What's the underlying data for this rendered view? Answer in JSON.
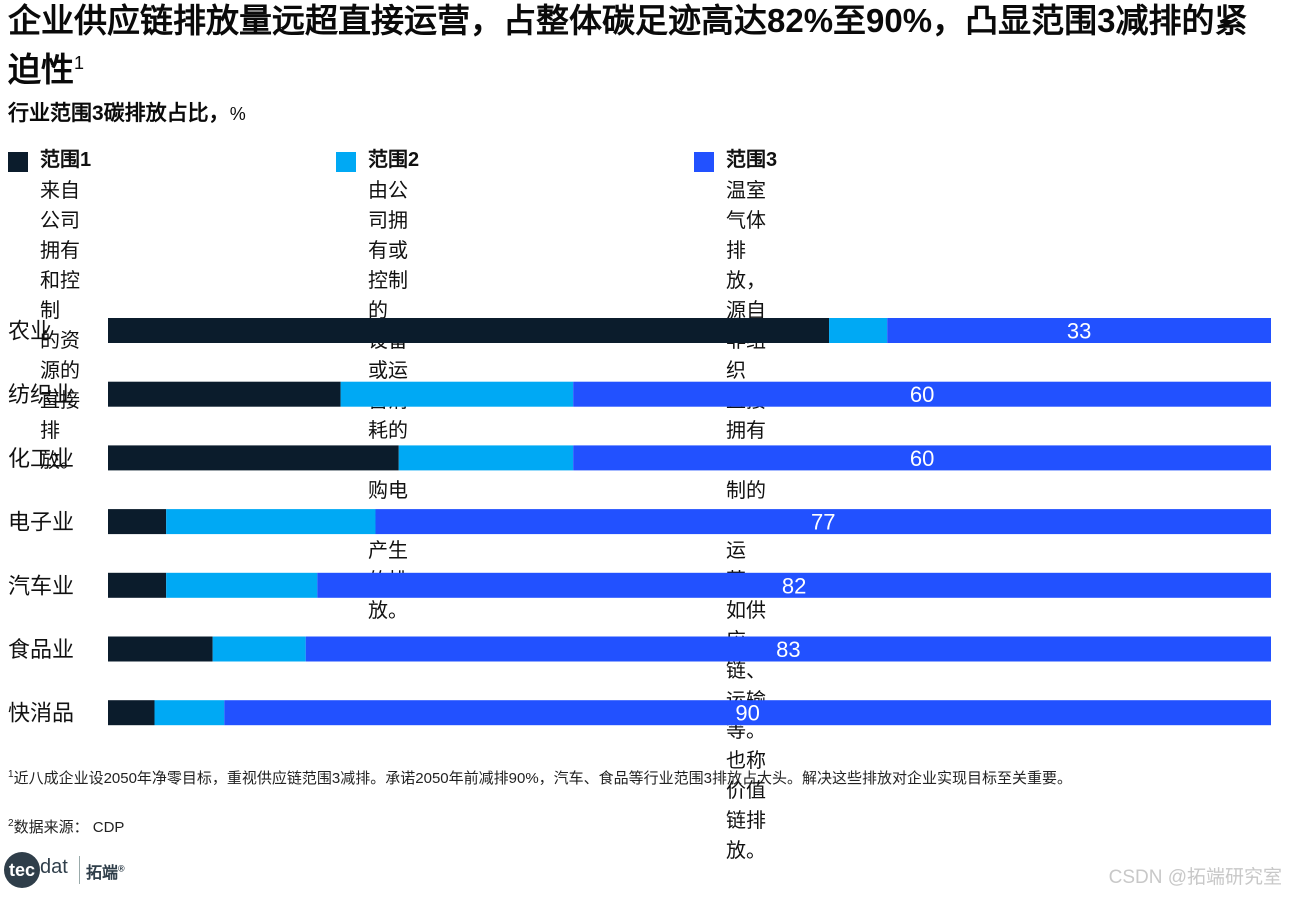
{
  "title": {
    "text": "企业供应链排放量远超直接运营，占整体碳足迹高达82%至90%，凸显范围3减排的紧迫性",
    "footnote_mark": "1"
  },
  "subtitle": {
    "text": "行业范围3碳排放占比，",
    "unit": "%"
  },
  "legend": [
    {
      "name": "范围1",
      "color": "#0b1c2c",
      "desc": "来自公司拥有和控制\n的资源的直接排放。"
    },
    {
      "name": "范围2",
      "color": "#00a9f4",
      "desc": "由公司拥有或控制的\n设备或运营消耗的外\n购电力所产生的排放。"
    },
    {
      "name": "范围3",
      "color": "#2251ff",
      "desc": "温室气体排放，源自非组织\n直接拥有或控制的业务运营，\n如供应链、运输等。也称\n价值链排放。"
    }
  ],
  "chart_data": {
    "type": "bar",
    "orientation": "horizontal",
    "stacked": true,
    "categories": [
      "农业",
      "纺织业",
      "化工业",
      "电子业",
      "汽车业",
      "食品业",
      "快消品"
    ],
    "series": [
      {
        "name": "范围1",
        "color": "#0b1c2c",
        "values": [
          62,
          20,
          25,
          5,
          5,
          9,
          4
        ]
      },
      {
        "name": "范围2",
        "color": "#00a9f4",
        "values": [
          5,
          20,
          15,
          18,
          13,
          8,
          6
        ]
      },
      {
        "name": "范围3",
        "color": "#2251ff",
        "values": [
          33,
          60,
          60,
          77,
          82,
          83,
          90
        ]
      }
    ],
    "data_labels": [
      "33",
      "60",
      "60",
      "77",
      "82",
      "83",
      "90"
    ],
    "xlim": [
      0,
      100
    ],
    "grid": false,
    "legend_position": "top"
  },
  "footnotes": {
    "note1_mark": "1",
    "note1": "近八成企业设2050年净零目标，重视供应链范围3减排。承诺2050年前减排90%，汽车、食品等行业范围3排放占大头。解决这些排放对企业实现目标至关重要。",
    "note2_mark": "2",
    "note2": "数据来源： CDP"
  },
  "logo": {
    "circle_text": "tec",
    "rest_text": "dat",
    "cn_text": "拓端",
    "mark": "®"
  },
  "watermark": "CSDN @拓端研究室"
}
